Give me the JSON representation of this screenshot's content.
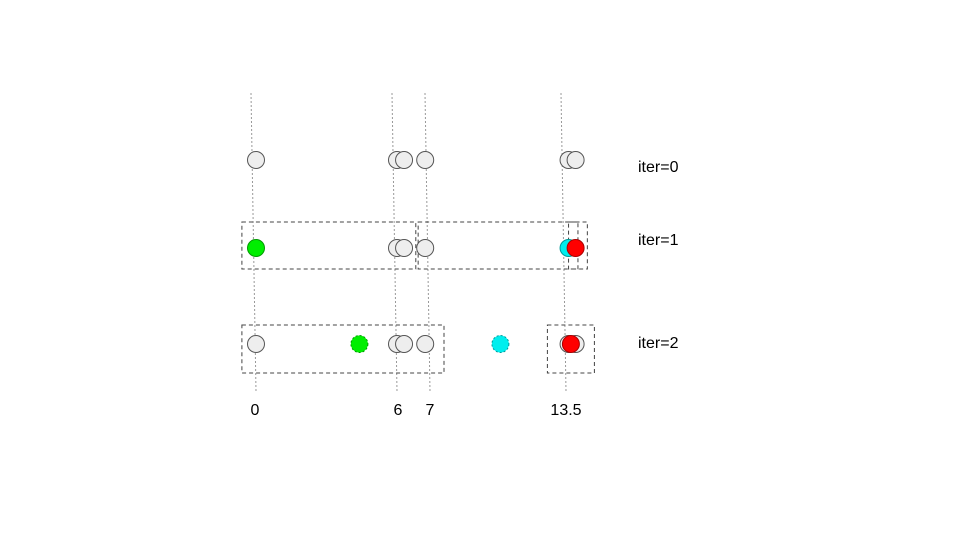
{
  "colors": {
    "gray_fill": "#eeeeee",
    "gray_stroke": "#555555",
    "green": "#00ee00",
    "cyan": "#00eeee",
    "red": "#ff0000",
    "guide": "#999999",
    "box": "#444444"
  },
  "axis": {
    "ticks": [
      {
        "value": 0,
        "label": "0"
      },
      {
        "value": 6,
        "label": "6"
      },
      {
        "value": 7,
        "label": "7"
      },
      {
        "value": 13.5,
        "label": "13.5"
      }
    ]
  },
  "rows": [
    {
      "label": "iter=0",
      "points": [
        {
          "value": 0,
          "kind": "gray"
        },
        {
          "value": 6,
          "kind": "gray"
        },
        {
          "value": 6.3,
          "kind": "gray"
        },
        {
          "value": 7.2,
          "kind": "gray"
        },
        {
          "value": 13.3,
          "kind": "gray"
        },
        {
          "value": 13.6,
          "kind": "gray"
        }
      ],
      "boxes": []
    },
    {
      "label": "iter=1",
      "points": [
        {
          "value": 0,
          "kind": "green"
        },
        {
          "value": 6,
          "kind": "gray"
        },
        {
          "value": 6.3,
          "kind": "gray"
        },
        {
          "value": 7.2,
          "kind": "gray"
        },
        {
          "value": 13.3,
          "kind": "cyan"
        },
        {
          "value": 13.6,
          "kind": "red"
        }
      ],
      "boxes": [
        {
          "from": -0.6,
          "to": 6.8
        },
        {
          "from": 6.9,
          "to": 13.7
        },
        {
          "from": 13.3,
          "to": 14.1
        }
      ]
    },
    {
      "label": "iter=2",
      "points": [
        {
          "value": 0,
          "kind": "gray"
        },
        {
          "value": 4.4,
          "kind": "green",
          "dashed": true
        },
        {
          "value": 6,
          "kind": "gray"
        },
        {
          "value": 6.3,
          "kind": "gray"
        },
        {
          "value": 7.2,
          "kind": "gray"
        },
        {
          "value": 10.4,
          "kind": "cyan",
          "dashed": true
        },
        {
          "value": 13.3,
          "kind": "gray"
        },
        {
          "value": 13.6,
          "kind": "gray"
        },
        {
          "value": 13.4,
          "kind": "red"
        }
      ],
      "boxes": [
        {
          "from": -0.6,
          "to": 8.0
        },
        {
          "from": 12.4,
          "to": 14.4
        }
      ]
    }
  ]
}
